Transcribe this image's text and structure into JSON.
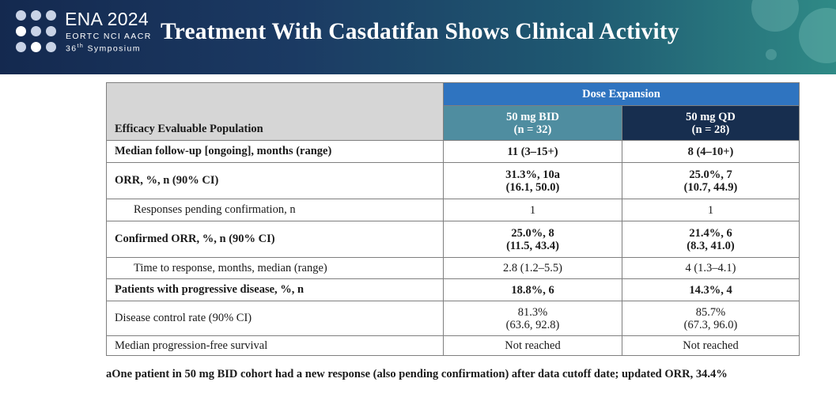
{
  "header": {
    "brand": "ENA 2024",
    "subtitle": "EORTC NCI AACR",
    "symposium_num": "36",
    "symposium_sup": "th",
    "symposium_word": "Symposium",
    "title": "Treatment With Casdatifan Shows Clinical Activity",
    "colors": {
      "banner_left": "#14294f",
      "banner_right": "#2f8a86"
    }
  },
  "table": {
    "population_header": "Efficacy Evaluable Population",
    "group_header": "Dose Expansion",
    "columns": [
      {
        "name": "50 mg BID",
        "n": "(n = 32)"
      },
      {
        "name": "50 mg QD",
        "n": "(n = 28)"
      }
    ],
    "rows": [
      {
        "label": "Median follow-up [ongoing], months (range)",
        "bold": true,
        "indent": false,
        "bid": [
          "11 (3–15+)"
        ],
        "qd": [
          "8 (4–10+)"
        ]
      },
      {
        "label": "ORR, %, n (90% CI)",
        "bold": true,
        "indent": false,
        "bid": [
          "31.3%, 10a",
          "(16.1, 50.0)"
        ],
        "qd": [
          "25.0%, 7",
          "(10.7, 44.9)"
        ]
      },
      {
        "label": "Responses pending confirmation, n",
        "bold": false,
        "indent": true,
        "bid": [
          "1"
        ],
        "qd": [
          "1"
        ]
      },
      {
        "label": "Confirmed ORR, %, n (90% CI)",
        "bold": true,
        "indent": false,
        "bid": [
          "25.0%, 8",
          "(11.5, 43.4)"
        ],
        "qd": [
          "21.4%, 6",
          "(8.3, 41.0)"
        ]
      },
      {
        "label": "Time to response, months, median (range)",
        "bold": false,
        "indent": true,
        "bid": [
          "2.8 (1.2–5.5)"
        ],
        "qd": [
          "4 (1.3–4.1)"
        ]
      },
      {
        "label": "Patients with progressive disease, %, n",
        "bold": true,
        "indent": false,
        "bid": [
          "18.8%, 6"
        ],
        "qd": [
          "14.3%, 4"
        ]
      },
      {
        "label": "Disease control rate (90% CI)",
        "bold": false,
        "indent": false,
        "bid": [
          "81.3%",
          "(63.6, 92.8)"
        ],
        "qd": [
          "85.7%",
          "(67.3, 96.0)"
        ]
      },
      {
        "label": "Median progression-free survival",
        "bold": false,
        "indent": false,
        "bid": [
          "Not reached"
        ],
        "qd": [
          "Not reached"
        ]
      }
    ],
    "colors": {
      "dose_expansion": "#2f74c0",
      "bid_header": "#4f8da0",
      "qd_header": "#172e4f",
      "population_header": "#d6d6d6"
    }
  },
  "footnote": "aOne patient in 50 mg BID cohort had a new response (also pending confirmation) after data cutoff date; updated ORR, 34.4%"
}
